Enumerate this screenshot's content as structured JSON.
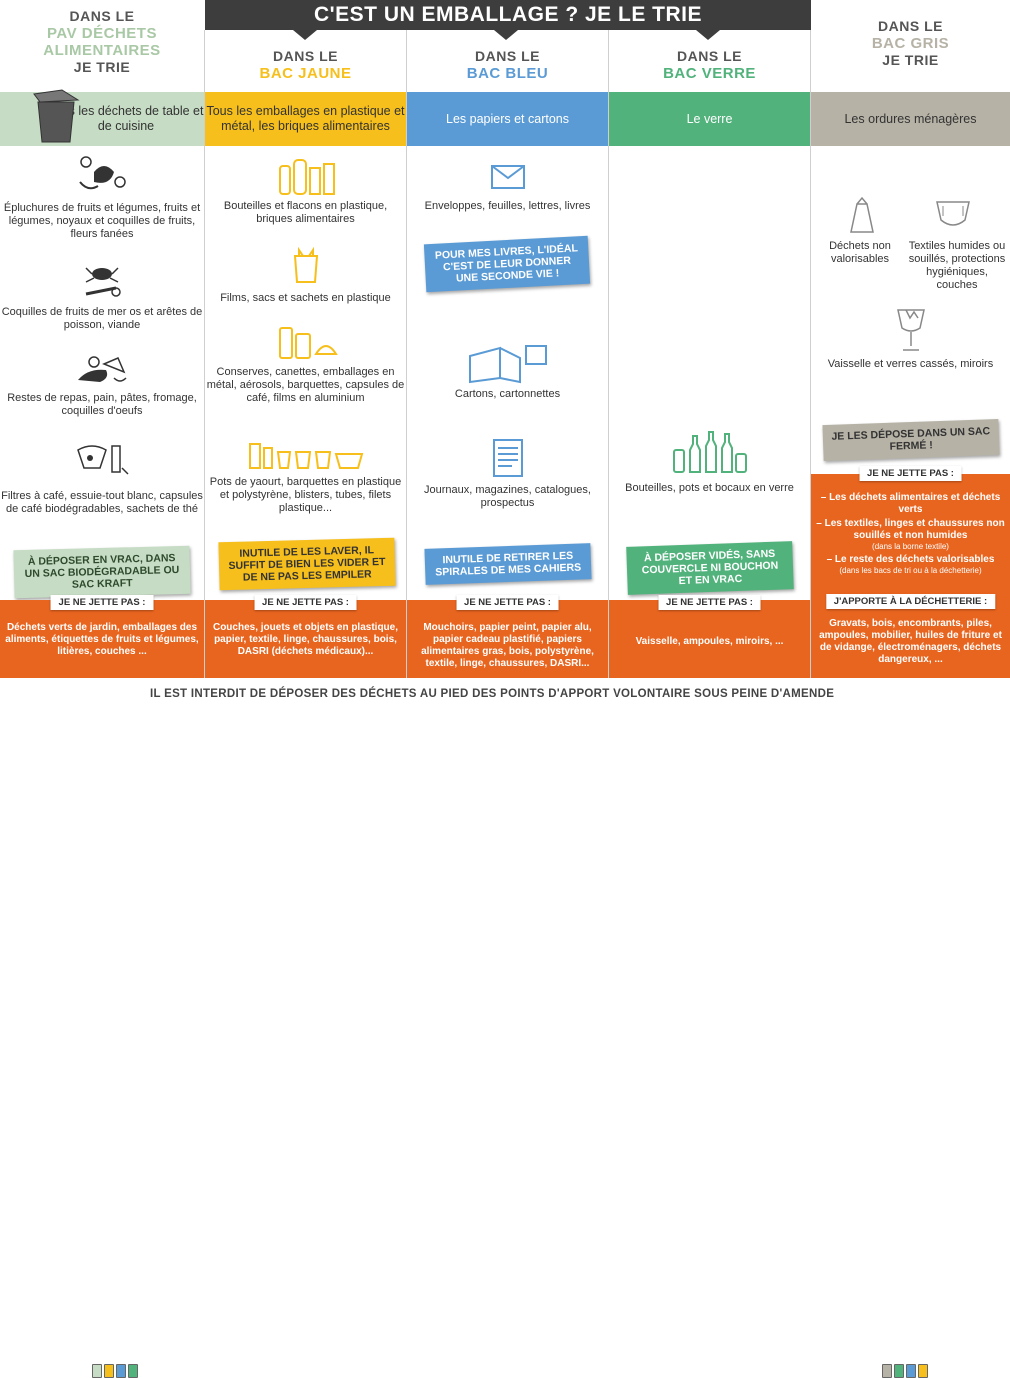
{
  "banner": "C'EST UN EMBALLAGE ? JE LE TRIE",
  "colors": {
    "green": "#c6dcc4",
    "yellow": "#f6bf1b",
    "blue": "#5b9bd5",
    "green_bar": "#52b27c",
    "gray": "#b6b2a6",
    "orange": "#e8651f",
    "dark": "#3d3d3d"
  },
  "pav": {
    "head1": "DANS LE",
    "head2": "PAV DÉCHETS",
    "head3": "ALIMENTAIRES",
    "head4": "JE TRIE",
    "bar": "Tous les déchets de table et de cuisine",
    "items": [
      "Épluchures de fruits et légumes, fruits et légumes, noyaux et coquilles de fruits, fleurs fanées",
      "Coquilles de fruits de mer os et arêtes de poisson, viande",
      "Restes de repas, pain, pâtes, fromage, coquilles d'oeufs",
      "Filtres à café, essuie-tout blanc, capsules de café biodégradables, sachets de thé"
    ],
    "tag": "À DÉPOSER EN VRAC, DANS UN SAC BIODÉGRADABLE OU SAC KRAFT",
    "nj": "JE NE JETTE PAS :",
    "orange": "Déchets verts de jardin, emballages des aliments, étiquettes de fruits et légumes, litières, couches ..."
  },
  "jaune": {
    "head1": "DANS LE",
    "head2": "BAC JAUNE",
    "bar": "Tous les emballages en plastique et métal, les briques alimentaires",
    "items": [
      "Bouteilles et flacons en plastique, briques alimentaires",
      "Films, sacs et sachets en plastique",
      "Conserves, canettes, emballages en métal, aérosols, barquettes, capsules de café, films en aluminium",
      "Pots de yaourt, barquettes en plastique et polystyrène, blisters, tubes, filets plastique..."
    ],
    "tag": "INUTILE DE LES LAVER, IL SUFFIT DE BIEN LES VIDER ET DE NE PAS LES EMPILER",
    "nj": "JE NE JETTE PAS :",
    "orange": "Couches, jouets et objets en plastique, papier, textile, linge, chaussures, bois, DASRI (déchets médicaux)..."
  },
  "bleu": {
    "head1": "DANS LE",
    "head2": "BAC BLEU",
    "bar": "Les papiers et cartons",
    "items": [
      "Enveloppes, feuilles, lettres, livres",
      "Cartons, cartonnettes",
      "Journaux, magazines, catalogues, prospectus"
    ],
    "tag1": "POUR MES LIVRES, L'IDÉAL C'EST DE LEUR DONNER UNE SECONDE VIE !",
    "tag2": "INUTILE DE RETIRER LES SPIRALES DE MES CAHIERS",
    "nj": "JE NE JETTE PAS :",
    "orange": "Mouchoirs, papier peint, papier alu, papier cadeau plastifié, papiers alimentaires gras, bois, polystyrène, textile, linge, chaussures, DASRI..."
  },
  "verre": {
    "head1": "DANS LE",
    "head2": "BAC VERRE",
    "bar": "Le verre",
    "items": [
      "Bouteilles, pots et bocaux en verre"
    ],
    "tag": "À DÉPOSER VIDÉS, SANS COUVERCLE NI BOUCHON ET EN VRAC",
    "nj": "JE NE JETTE PAS :",
    "orange": "Vaisselle, ampoules, miroirs, ..."
  },
  "gris": {
    "head1": "DANS LE",
    "head2": "BAC GRIS",
    "head3": "JE TRIE",
    "bar": "Les ordures ménagères",
    "items": [
      "Déchets non valorisables",
      "Textiles humides ou souillés, protections hygiéniques, couches",
      "Vaisselle et verres cassés, miroirs"
    ],
    "tag": "JE LES DÉPOSE DANS UN SAC FERMÉ !",
    "nj1": "JE NE JETTE PAS :",
    "nj_list": [
      {
        "t": "– Les déchets alimentaires et déchets verts",
        "s": ""
      },
      {
        "t": "– Les textiles, linges et chaussures non souillés et non humides",
        "s": "(dans la borne textile)"
      },
      {
        "t": "– Le reste des déchets valorisables",
        "s": "(dans les bacs de tri ou à la déchetterie)"
      }
    ],
    "nj2": "J'APPORTE À LA DÉCHETTERIE :",
    "orange": "Gravats, bois, encombrants, piles, ampoules, mobilier, huiles de friture et de vidange, électroménagers, déchets dangereux, ..."
  },
  "footer": "IL EST INTERDIT DE DÉPOSER DES DÉCHETS AU PIED DES POINTS D'APPORT VOLONTAIRE SOUS PEINE D'AMENDE"
}
